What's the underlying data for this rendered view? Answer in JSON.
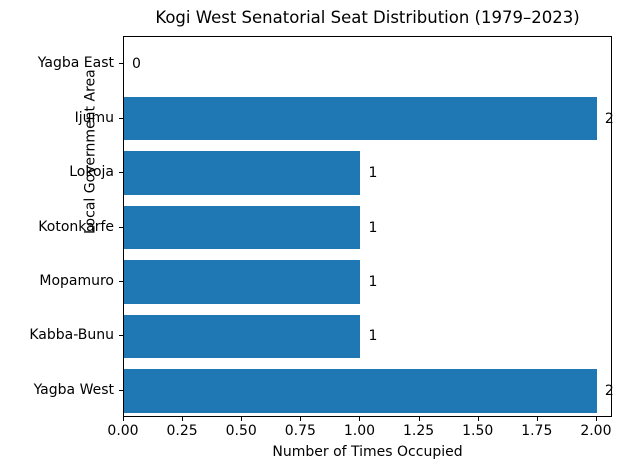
{
  "chart_data": {
    "type": "bar",
    "orientation": "horizontal",
    "title": "Kogi West Senatorial Seat Distribution (1979–2023)",
    "xlabel": "Number of Times Occupied",
    "ylabel": "Local Government Area",
    "categories": [
      "Yagba East",
      "Ijumu",
      "Lokoja",
      "Kotonkarfe",
      "Mopamuro",
      "Kabba-Bunu",
      "Yagba West"
    ],
    "values": [
      0,
      2,
      1,
      1,
      1,
      1,
      2
    ],
    "value_labels": [
      "0",
      "2",
      "1",
      "1",
      "1",
      "1",
      "2"
    ],
    "x_ticks": [
      {
        "value": 0.0,
        "label": "0.00"
      },
      {
        "value": 0.25,
        "label": "0.25"
      },
      {
        "value": 0.5,
        "label": "0.50"
      },
      {
        "value": 0.75,
        "label": "0.75"
      },
      {
        "value": 1.0,
        "label": "1.00"
      },
      {
        "value": 1.25,
        "label": "1.25"
      },
      {
        "value": 1.5,
        "label": "1.50"
      },
      {
        "value": 1.75,
        "label": "1.75"
      },
      {
        "value": 2.0,
        "label": "2.00"
      }
    ],
    "xlim": [
      0,
      2.068
    ],
    "bar_color": "#1f77b4",
    "background_color": "#ffffff",
    "grid": false,
    "legend": null
  }
}
